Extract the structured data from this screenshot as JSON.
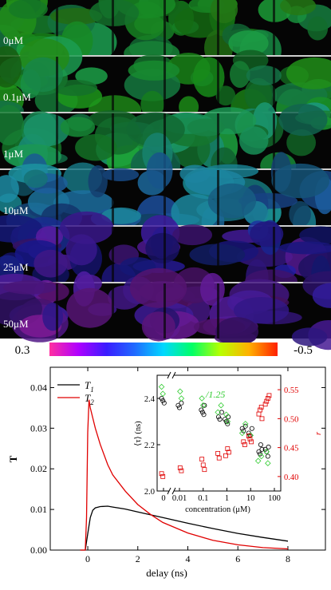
{
  "microscopy": {
    "panels": [
      "0μM",
      "0.1μM",
      "1μM",
      "10μM",
      "25μM",
      "50μM"
    ],
    "panel_hues": [
      130,
      135,
      150,
      200,
      250,
      270
    ]
  },
  "colorbar": {
    "min_label": "0.3",
    "max_label": "-0.5",
    "colors": [
      "#ff2fa0",
      "#b000ff",
      "#3a1cff",
      "#1f6bff",
      "#00d8ff",
      "#00ff66",
      "#b8ff00",
      "#ffb000",
      "#ff2000"
    ]
  },
  "chart_data": [
    {
      "type": "line",
      "xlabel": "delay (ns)",
      "ylabel": "T",
      "xlim": [
        -1.5,
        9.5
      ],
      "ylim": [
        0,
        0.045
      ],
      "xticks": [
        0,
        2,
        4,
        6,
        8
      ],
      "yticks": [
        0.0,
        0.01,
        0.02,
        0.03,
        0.04
      ],
      "ytick_labels": [
        "0.00",
        "0.01",
        "0.02",
        "0.03",
        "0.04"
      ],
      "legend_position": "top-left",
      "series": [
        {
          "name": "T1",
          "color": "#000000",
          "x": [
            -0.3,
            -0.1,
            0.0,
            0.1,
            0.2,
            0.3,
            0.5,
            0.8,
            1.0,
            1.5,
            2.0,
            3.0,
            4.0,
            5.0,
            6.0,
            7.0,
            8.0
          ],
          "y": [
            0.0,
            0.0,
            0.004,
            0.008,
            0.0098,
            0.0104,
            0.0107,
            0.0108,
            0.0106,
            0.0101,
            0.0094,
            0.008,
            0.0066,
            0.0053,
            0.0041,
            0.0031,
            0.0022
          ]
        },
        {
          "name": "T2",
          "color": "#e00000",
          "x": [
            -0.3,
            -0.1,
            -0.05,
            0.0,
            0.05,
            0.1,
            0.3,
            0.5,
            0.8,
            1.0,
            1.5,
            2.0,
            2.5,
            3.0,
            4.0,
            5.0,
            6.0,
            7.0,
            8.0
          ],
          "y": [
            0.0,
            0.0,
            0.008,
            0.029,
            0.037,
            0.035,
            0.03,
            0.026,
            0.021,
            0.0185,
            0.0145,
            0.0112,
            0.0088,
            0.0068,
            0.0042,
            0.0024,
            0.0013,
            0.0006,
            0.0003
          ]
        }
      ]
    },
    {
      "type": "scatter",
      "xlabel": "concentration (μM)",
      "ylabel_left": "⟨τ⟩ (ns)",
      "ylabel_right": "r",
      "annotation": "/1.25",
      "xtick_labels": [
        "0",
        "0.01",
        "0.1",
        "1",
        "10",
        "100"
      ],
      "ylim_left": [
        2.0,
        2.5
      ],
      "yticks_left": [
        2.0,
        2.2,
        2.4
      ],
      "ylim_right": [
        0.375,
        0.575
      ],
      "yticks_right": [
        0.4,
        0.45,
        0.5,
        0.55
      ],
      "series": [
        {
          "name": "⟨τ⟩",
          "marker": "circle",
          "color": "#000000",
          "x": [
            0,
            0,
            0,
            0.01,
            0.01,
            0.01,
            0.1,
            0.1,
            0.1,
            0.1,
            0.5,
            0.5,
            0.5,
            1,
            1,
            1,
            1,
            5,
            5,
            5,
            10,
            10,
            10,
            25,
            25,
            25,
            25,
            50,
            50,
            50,
            50
          ],
          "y": [
            2.4,
            2.39,
            2.38,
            2.38,
            2.37,
            2.36,
            2.37,
            2.35,
            2.34,
            2.33,
            2.34,
            2.32,
            2.31,
            2.32,
            2.31,
            2.3,
            2.29,
            2.28,
            2.27,
            2.26,
            2.27,
            2.25,
            2.24,
            2.2,
            2.18,
            2.17,
            2.16,
            2.19,
            2.18,
            2.17,
            2.15
          ]
        },
        {
          "name": "⟨τ⟩/1.25",
          "marker": "diamond",
          "color": "#33cc33",
          "x": [
            0,
            0,
            0.01,
            0.01,
            0.1,
            0.1,
            0.5,
            0.5,
            1,
            1,
            5,
            5,
            10,
            25,
            25,
            50,
            50
          ],
          "y": [
            2.45,
            2.42,
            2.43,
            2.4,
            2.4,
            2.37,
            2.37,
            2.34,
            2.33,
            2.3,
            2.29,
            2.25,
            2.24,
            2.15,
            2.13,
            2.17,
            2.12
          ]
        },
        {
          "name": "r",
          "marker": "square",
          "color": "#e00000",
          "axis": "right",
          "x": [
            0,
            0,
            0.01,
            0.01,
            0.1,
            0.1,
            0.1,
            0.5,
            0.5,
            1,
            1,
            1,
            5,
            5,
            10,
            10,
            10,
            25,
            25,
            25,
            25,
            50,
            50,
            50,
            50
          ],
          "y": [
            0.405,
            0.4,
            0.415,
            0.41,
            0.43,
            0.42,
            0.412,
            0.44,
            0.432,
            0.448,
            0.442,
            0.436,
            0.46,
            0.455,
            0.47,
            0.465,
            0.46,
            0.5,
            0.508,
            0.515,
            0.52,
            0.525,
            0.53,
            0.535,
            0.54
          ]
        }
      ]
    }
  ]
}
